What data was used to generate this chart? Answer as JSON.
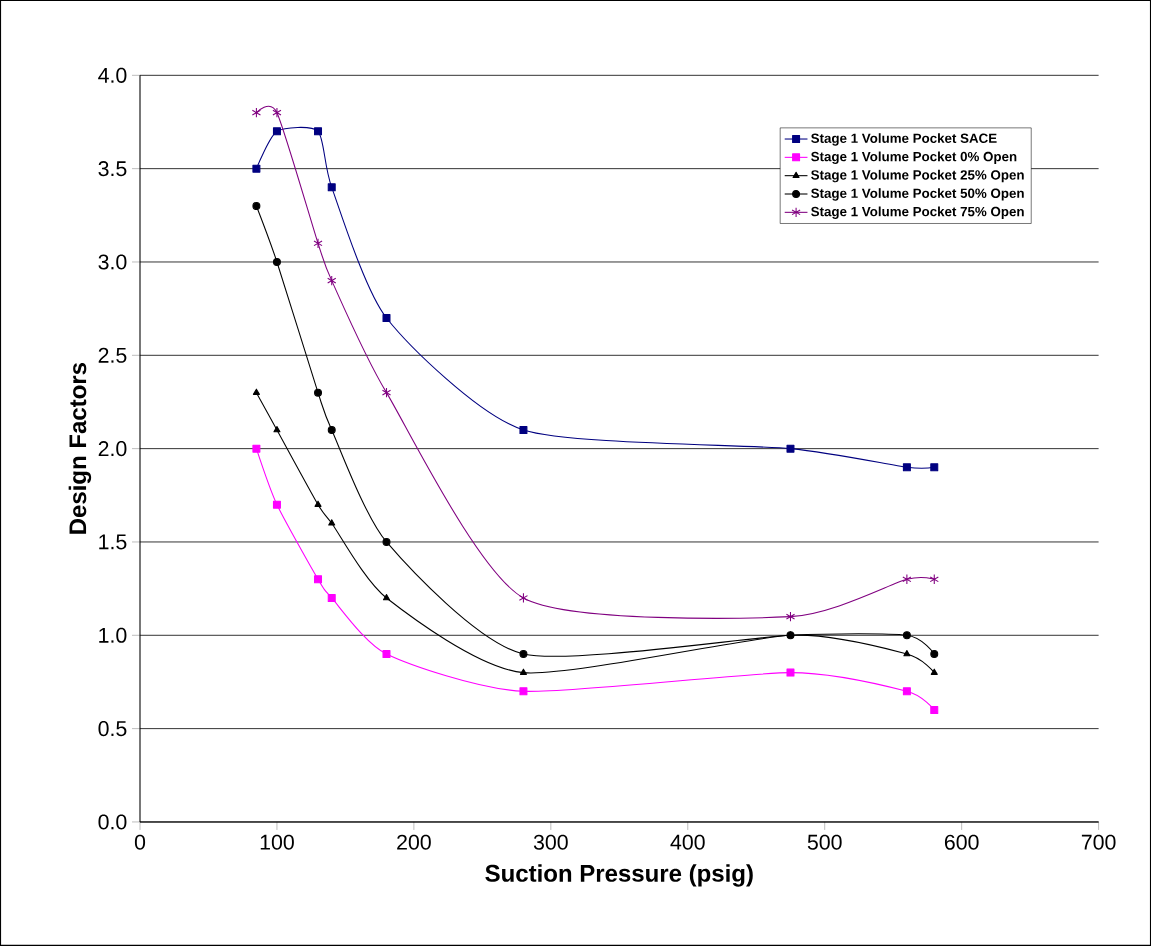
{
  "chart_data": {
    "type": "line",
    "xlabel": "Suction Pressure (psig)",
    "ylabel": "Design Factors",
    "x": [
      85,
      100,
      130,
      140,
      180,
      280,
      475,
      560,
      580
    ],
    "series": [
      {
        "name": "Stage 1 Volume Pocket SACE",
        "color": "#000080",
        "marker": "square",
        "values": [
          3.5,
          3.7,
          3.7,
          3.4,
          2.7,
          2.1,
          2.0,
          1.9,
          1.9
        ]
      },
      {
        "name": "Stage 1 Volume Pocket 0% Open",
        "color": "#ff00ff",
        "marker": "square",
        "values": [
          2.0,
          1.7,
          1.3,
          1.2,
          0.9,
          0.7,
          0.8,
          0.7,
          0.6
        ]
      },
      {
        "name": "Stage 1 Volume Pocket 25% Open",
        "color": "#000000",
        "marker": "triangle",
        "values": [
          2.3,
          2.1,
          1.7,
          1.6,
          1.2,
          0.8,
          1.0,
          0.9,
          0.8
        ]
      },
      {
        "name": "Stage 1 Volume Pocket 50% Open",
        "color": "#000000",
        "marker": "circle",
        "values": [
          3.3,
          3.0,
          2.3,
          2.1,
          1.5,
          0.9,
          1.0,
          1.0,
          0.9
        ]
      },
      {
        "name": "Stage 1 Volume Pocket 75% Open",
        "color": "#800080",
        "marker": "cross",
        "values": [
          3.8,
          3.8,
          3.1,
          2.9,
          2.3,
          1.2,
          1.1,
          1.3,
          1.3
        ]
      }
    ],
    "xlim": [
      0,
      700
    ],
    "xticks": [
      0,
      100,
      200,
      300,
      400,
      500,
      600,
      700
    ],
    "ylim": [
      0,
      4.0
    ],
    "yticks": [
      {
        "value": 0,
        "label": "0.0"
      },
      {
        "value": 0.5,
        "label": "0.5"
      },
      {
        "value": 1,
        "label": "1.0"
      },
      {
        "value": 1.5,
        "label": "1.5"
      },
      {
        "value": 2,
        "label": "2.0"
      },
      {
        "value": 2.5,
        "label": "2.5"
      },
      {
        "value": 3,
        "label": "3.0"
      },
      {
        "value": 3.5,
        "label": "3.5"
      },
      {
        "value": 4,
        "label": "4.0"
      }
    ],
    "grid": "y",
    "legend": "top right",
    "line_style": "solid"
  }
}
